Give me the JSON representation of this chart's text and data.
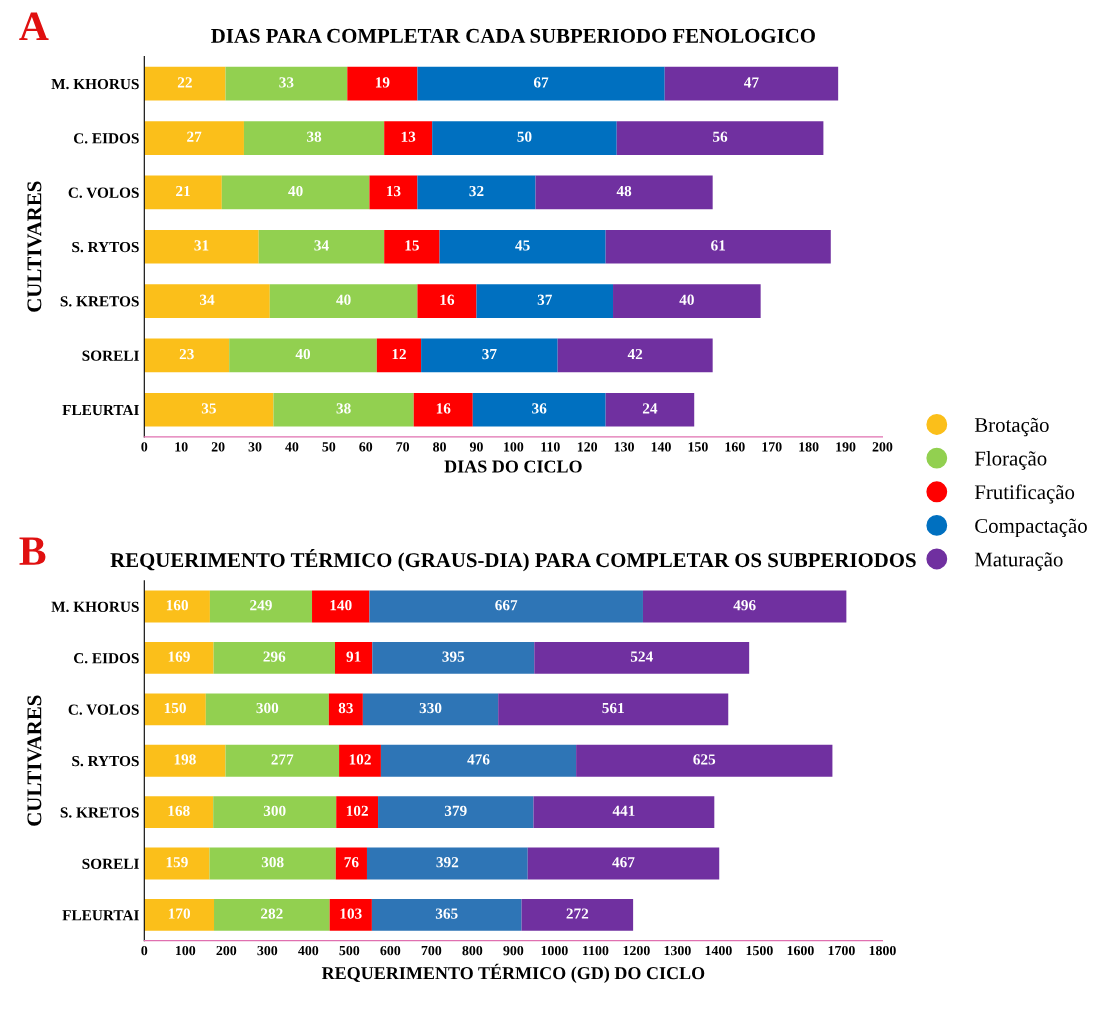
{
  "chart_data": [
    {
      "type": "bar",
      "orientation": "horizontal",
      "stacked": true,
      "title": "DIAS PARA COMPLETAR CADA SUBPERIODO FENOLOGICO",
      "xlabel": "DIAS DO CICLO",
      "ylabel": "CULTIVARES",
      "annotations": [
        "A"
      ],
      "categories": [
        "M. KHORUS",
        "C. EIDOS",
        "C. VOLOS",
        "S. RYTOS",
        "S. KRETOS",
        "SORELI",
        "FLEURTAI"
      ],
      "series": [
        {
          "name": "Brotação",
          "color": "#fbbf1a",
          "values": [
            22,
            27,
            21,
            31,
            34,
            23,
            35
          ]
        },
        {
          "name": "Floração",
          "color": "#92d050",
          "values": [
            33,
            38,
            40,
            34,
            40,
            40,
            38
          ]
        },
        {
          "name": "Frutificação",
          "color": "#ff0000",
          "values": [
            19,
            13,
            13,
            15,
            16,
            12,
            16
          ]
        },
        {
          "name": "Compactação",
          "color": "#0070c0",
          "values": [
            67,
            50,
            32,
            45,
            37,
            37,
            36
          ]
        },
        {
          "name": "Maturação",
          "color": "#7030a0",
          "values": [
            47,
            56,
            48,
            61,
            40,
            42,
            24
          ]
        }
      ],
      "xlim": [
        0,
        200
      ],
      "xticks": [
        0,
        10,
        20,
        30,
        40,
        50,
        60,
        70,
        80,
        90,
        100,
        110,
        120,
        130,
        140,
        150,
        160,
        170,
        180,
        190,
        200
      ],
      "data_labels": true,
      "grid": false,
      "legend": "right"
    },
    {
      "type": "bar",
      "orientation": "horizontal",
      "stacked": true,
      "title": "REQUERIMENTO TÉRMICO (GRAUS-DIA) PARA COMPLETAR OS SUBPERIODOS",
      "xlabel": "REQUERIMENTO TÉRMICO (GD) DO CICLO",
      "ylabel": "CULTIVARES",
      "annotations": [
        "B"
      ],
      "categories": [
        "M. KHORUS",
        "C. EIDOS",
        "C. VOLOS",
        "S. RYTOS",
        "S. KRETOS",
        "SORELI",
        "FLEURTAI"
      ],
      "series": [
        {
          "color": "#fbbf1a",
          "values": [
            160,
            169,
            150,
            198,
            168,
            159,
            170
          ]
        },
        {
          "color": "#92d050",
          "values": [
            249,
            296,
            300,
            277,
            300,
            308,
            282
          ]
        },
        {
          "color": "#ff0000",
          "values": [
            140,
            91,
            83,
            102,
            102,
            76,
            103
          ]
        },
        {
          "color": "#2e75b6",
          "values": [
            667,
            395,
            330,
            476,
            379,
            392,
            365
          ]
        },
        {
          "color": "#7030a0",
          "values": [
            496,
            524,
            561,
            625,
            441,
            467,
            272
          ]
        }
      ],
      "xlim": [
        0,
        1800
      ],
      "xticks": [
        0,
        100,
        200,
        300,
        400,
        500,
        600,
        700,
        800,
        900,
        1000,
        1100,
        1200,
        1300,
        1400,
        1500,
        1600,
        1700,
        1800
      ],
      "data_labels": true,
      "grid": false,
      "legend": false
    }
  ]
}
